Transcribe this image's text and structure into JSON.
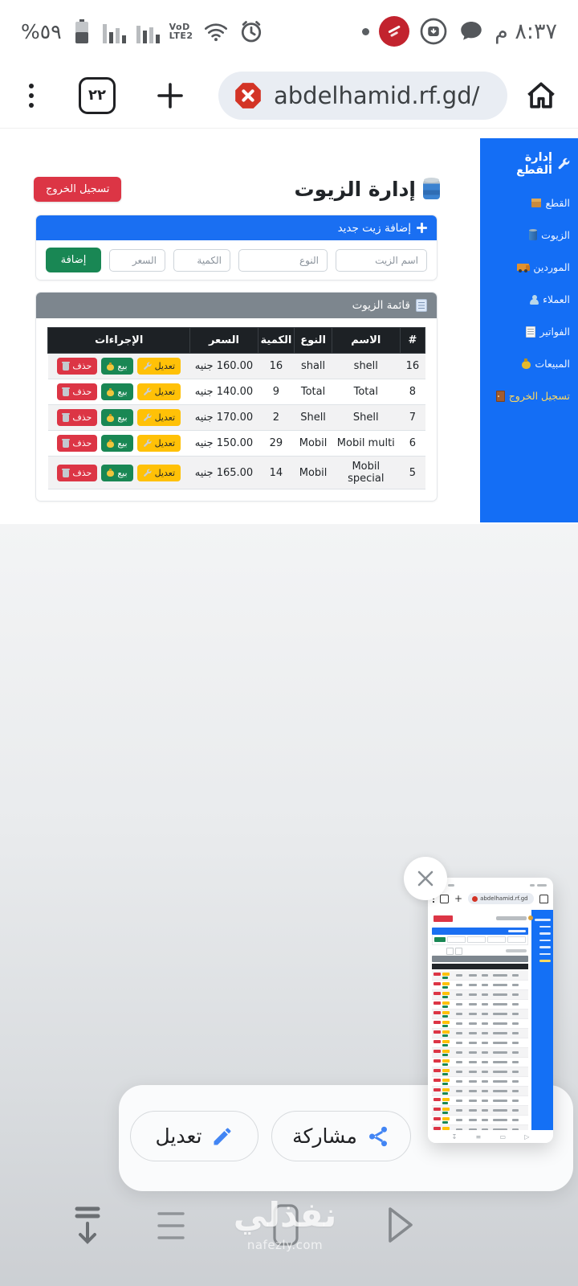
{
  "status_bar": {
    "battery_percent": "%٥٩",
    "volte_line1": "VoD",
    "volte_line2": "LTE2",
    "time": "٨:٣٧ م"
  },
  "toolbar": {
    "tab_count": "٢٢",
    "url": "abdelhamid.rf.gd/"
  },
  "sidebar": {
    "title": "إدارة القطع",
    "items": [
      {
        "label": "القطع",
        "icon": "package-icon"
      },
      {
        "label": "الزيوت",
        "icon": "oil-barrel-icon"
      },
      {
        "label": "الموردين",
        "icon": "truck-icon"
      },
      {
        "label": "العملاء",
        "icon": "clients-icon"
      },
      {
        "label": "الفواتير",
        "icon": "invoice-icon"
      },
      {
        "label": "المبيعات",
        "icon": "money-bag-icon"
      },
      {
        "label": "تسجيل الخروج",
        "icon": "door-icon",
        "logout": true
      }
    ]
  },
  "page": {
    "title": "إدارة الزيوت",
    "logout_button": "تسجيل الخروج",
    "add_form": {
      "header": "إضافة زيت جديد",
      "fields": [
        "اسم الزيت",
        "النوع",
        "الكمية",
        "السعر"
      ],
      "submit": "إضافة"
    },
    "list": {
      "header": "قائمة الزيوت",
      "columns": [
        "#",
        "الاسم",
        "النوع",
        "الكمية",
        "السعر",
        "الإجراءات"
      ],
      "rows": [
        {
          "id": "16",
          "name": "shell",
          "type": "shall",
          "qty": "16",
          "price": "160.00 جنيه"
        },
        {
          "id": "8",
          "name": "Total",
          "type": "Total",
          "qty": "9",
          "price": "140.00 جنيه"
        },
        {
          "id": "7",
          "name": "Shell",
          "type": "Shell",
          "qty": "2",
          "price": "170.00 جنيه"
        },
        {
          "id": "6",
          "name": "Mobil multi",
          "type": "Mobil",
          "qty": "29",
          "price": "150.00 جنيه"
        },
        {
          "id": "5",
          "name": "Mobil special",
          "type": "Mobil",
          "qty": "14",
          "price": "165.00 جنيه"
        }
      ],
      "actions": {
        "edit": "تعديل",
        "sell": "بيع",
        "delete": "حذف"
      }
    }
  },
  "screenshot_overlay": {
    "share_button": "مشاركة",
    "edit_button": "تعديل",
    "thumbnail_url": "abdelhamid.rf.gd",
    "thumbnail_row_count": 18,
    "thumbnail_sidebar_line_count": 7
  },
  "watermark": {
    "title": "نفذلي",
    "domain": "nafezly.com"
  },
  "colors": {
    "sidebar_blue": "#146ef5",
    "header_blue": "#1a6ff2",
    "danger_red": "#dc3545",
    "success_green": "#198754",
    "warning_yellow": "#ffc107",
    "table_header_dark": "#1d2125",
    "card_header_gray": "#7d868e",
    "accent_blue": "#4285f4"
  }
}
